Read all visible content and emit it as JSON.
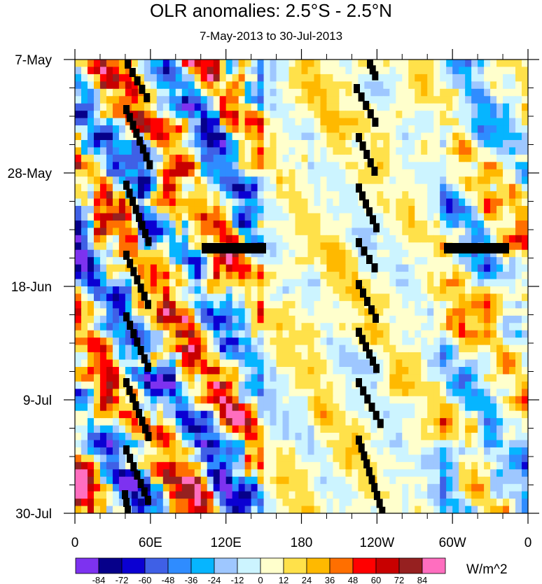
{
  "chart_data": {
    "type": "heatmap",
    "title": "OLR anomalies: 2.5°S - 2.5°N",
    "subtitle": "7-May-2013 to 30-Jul-2013",
    "x_ticks": [
      "0",
      "60E",
      "120E",
      "180",
      "120W",
      "60W",
      "0"
    ],
    "x_range": [
      0,
      360
    ],
    "y_ticks": [
      "7-May",
      "28-May",
      "18-Jun",
      "9-Jul",
      "30-Jul"
    ],
    "y_range": [
      "7-May-2013",
      "30-Jul-2013"
    ],
    "colorbar": {
      "unit": "W/m^2",
      "levels": [
        "-84",
        "-72",
        "-60",
        "-48",
        "-36",
        "-24",
        "-12",
        "0",
        "12",
        "24",
        "36",
        "48",
        "60",
        "72",
        "84"
      ],
      "colors": [
        "#7d32f0",
        "#06008a",
        "#0b00d2",
        "#3f60e6",
        "#2f8cff",
        "#06b5ff",
        "#9ec7ff",
        "#ccf4ff",
        "#ffffcc",
        "#ffe14a",
        "#ffb900",
        "#ff6f00",
        "#ff0000",
        "#c80000",
        "#962020",
        "#ff6ebf"
      ]
    },
    "missing_color": "#bdbdbd",
    "grid": false
  }
}
